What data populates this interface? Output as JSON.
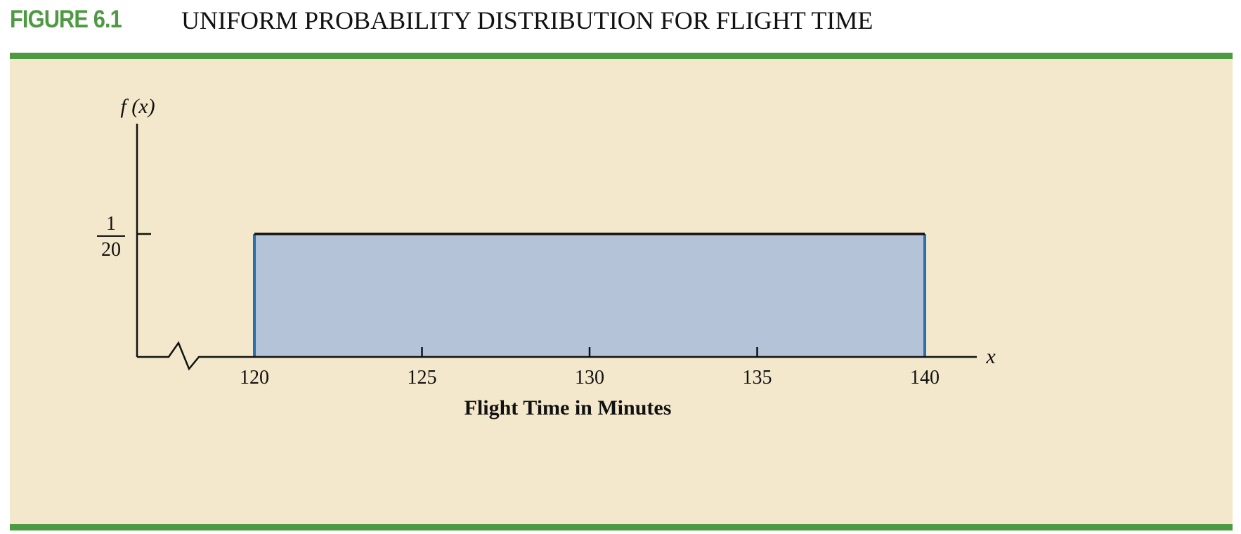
{
  "figure": {
    "number": "FIGURE 6.1",
    "title": "UNIFORM PROBABILITY DISTRIBUTION FOR FLIGHT TIME"
  },
  "colors": {
    "accent_green": "#4e9a43",
    "panel_background": "#f3e8cb",
    "area_fill": "#b5c3d8",
    "area_edge": "#2a6fb0",
    "axis": "#111111"
  },
  "chart_data": {
    "type": "area",
    "distribution": "uniform",
    "x": [
      120,
      140
    ],
    "y": [
      0.05,
      0.05
    ],
    "density_label": {
      "numerator": "1",
      "denominator": "20"
    },
    "xticks": [
      120,
      125,
      130,
      135,
      140
    ],
    "xlim": [
      120,
      140
    ],
    "ylim": [
      0,
      0.05
    ],
    "axis_break": true,
    "grid": false,
    "xlabel": "Flight Time in Minutes",
    "x_axis_symbol": "x",
    "ylabel": "f (x)"
  }
}
